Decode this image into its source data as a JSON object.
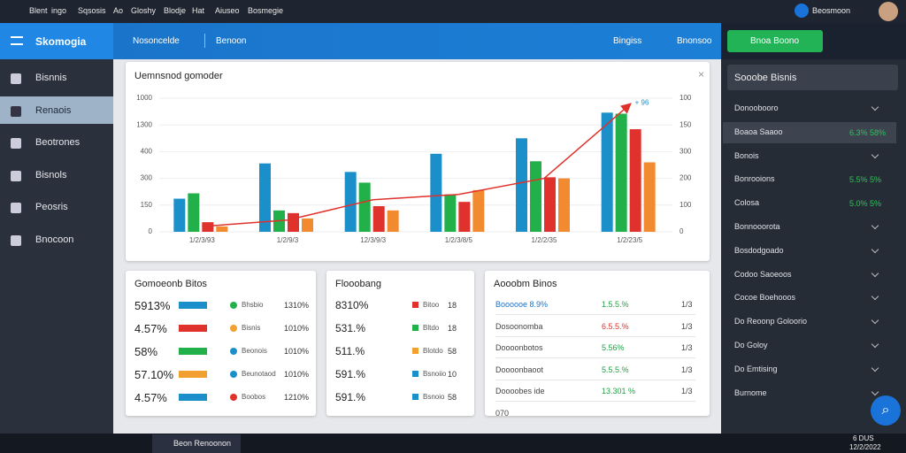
{
  "topbar": {
    "items": [
      "Blent",
      "ingo",
      "Sqsosis",
      "Ao",
      "Gloshy",
      "Blodje",
      "Hat",
      "Aiuseo",
      "Bosmegie"
    ],
    "user": "Beosmoon"
  },
  "header": {
    "logo": "Skomogia",
    "tabs": [
      "Nosoncelde",
      "Benoon"
    ],
    "actions": [
      "Bingiss",
      "Bnonsoo"
    ],
    "button": "Bnoa Boono"
  },
  "sidebar": {
    "items": [
      "Bisnnis",
      "Renaois",
      "Beotrones",
      "Bisnols",
      "Peosris",
      "Bnocoon"
    ],
    "active": 1
  },
  "chart_data": {
    "type": "bar",
    "title": "Uemnsnod gomoder",
    "categories": [
      "1/2/3/93",
      "1/2/9/3",
      "12/3/9/3",
      "1/2/3/8/5",
      "1/2/2/35",
      "1/2/23/5"
    ],
    "series": [
      {
        "color": "#1a8fc9",
        "values": [
          62,
          128,
          112,
          146,
          175,
          223
        ]
      },
      {
        "color": "#22b04b",
        "values": [
          72,
          40,
          92,
          70,
          132,
          221
        ]
      },
      {
        "color": "#e0322c",
        "values": [
          18,
          35,
          48,
          56,
          102,
          192
        ]
      },
      {
        "color": "#f28a30",
        "values": [
          10,
          25,
          40,
          78,
          100,
          130
        ]
      },
      {
        "type": "line",
        "color": "#e0322c",
        "values": [
          10,
          22,
          60,
          70,
          100,
          238
        ]
      }
    ],
    "annotation": "+ 96",
    "ylim": [
      0,
      250
    ],
    "yticks": [
      0,
      {
        "value": 50,
        "label": "150"
      },
      {
        "value": 100,
        "label": "300"
      },
      {
        "value": 150,
        "label": "400"
      },
      {
        "value": 200,
        "label": "1300"
      },
      {
        "value": 250,
        "label": "1000"
      }
    ],
    "y2lim": [
      0,
      250
    ],
    "y2ticks": [
      0,
      {
        "value": 50,
        "label": "100"
      },
      {
        "value": 100,
        "label": "200"
      },
      {
        "value": 150,
        "label": "300"
      },
      {
        "value": 200,
        "label": "150"
      },
      {
        "value": 250,
        "label": "100"
      }
    ],
    "grid": true
  },
  "cards": [
    {
      "title": "Gomoeonb Bitos",
      "rows": [
        [
          "5913%",
          "Bhsbio",
          "1310%"
        ],
        [
          "4.57%",
          "Bisnis",
          "1010%"
        ],
        [
          "58%",
          "Beonois",
          "1010%"
        ],
        [
          "57.10%",
          "Beunotaod",
          "1010%"
        ],
        [
          "4.57%",
          "Boobos",
          "1210%"
        ]
      ]
    },
    {
      "title": "Flooobang",
      "rows": [
        [
          "8310%",
          "Bitoo",
          "18"
        ],
        [
          "531.%",
          "Bltdo",
          "18"
        ],
        [
          "511.%",
          "Blotdo",
          "58"
        ],
        [
          "591.%",
          "Bsnoiio",
          "10"
        ],
        [
          "591.%",
          "Bsnoio",
          "58"
        ]
      ]
    },
    {
      "title": "Aooobm Binos",
      "rows": [
        [
          "Boooooe 8.9%",
          "1.5.5.%",
          "1/3"
        ],
        [
          "Dosoonomba",
          "6.5.5.%",
          "1/3"
        ],
        [
          "Doooonbotos",
          "5.56%",
          "1/3"
        ],
        [
          "Doooonbaoot",
          "5.5.5.%",
          "1/3"
        ],
        [
          "Doooobes ide",
          "13.301 %",
          "1/3"
        ],
        [
          "070"
        ]
      ]
    }
  ],
  "panel": {
    "title": "Sooobe Bisnis",
    "items": [
      [
        "Donoobooro"
      ],
      [
        "Boaoa Saaoo",
        "6.3% 58%"
      ],
      [
        "Bonois"
      ],
      [
        "Bonrooions",
        "5.5% 5%"
      ],
      [
        "Colosa",
        "5.0% 5%"
      ],
      [
        "Bonnooorota"
      ],
      [
        "Bosdodgoado"
      ],
      [
        "Codoo Saoeoos"
      ],
      [
        "Cocoe Boehooos"
      ],
      [
        "Do Reoonp Goloorio"
      ],
      [
        "Do Goloy"
      ],
      [
        "Do Emtising"
      ],
      [
        "Burnome"
      ]
    ]
  },
  "taskbar": {
    "app": "Beon Renoonon",
    "time": "6 DUS",
    "date": "12/2/2022"
  }
}
